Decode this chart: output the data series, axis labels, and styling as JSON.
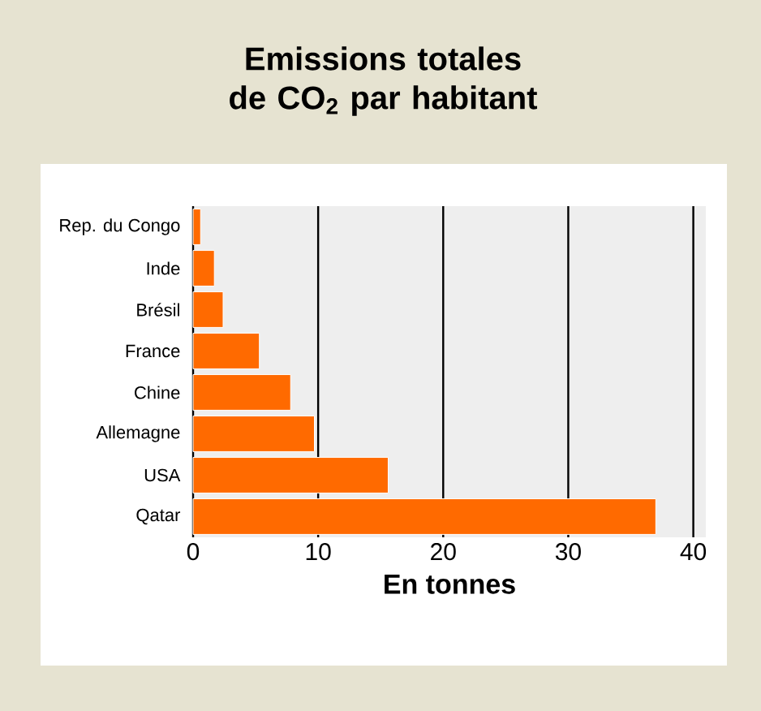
{
  "chart_data": {
    "type": "bar",
    "orientation": "horizontal",
    "title": "Emissions totales de CO$_{2}$ par habitant",
    "xlabel": "En tonnes",
    "categories": [
      "Rep. du Congo",
      "Inde",
      "Brésil",
      "France",
      "Chine",
      "Allemagne",
      "USA",
      "Qatar"
    ],
    "values": [
      0.6,
      1.7,
      2.4,
      5.3,
      7.8,
      9.7,
      15.6,
      37.0
    ],
    "color": "#ff6a00",
    "xlim": [
      0,
      41
    ],
    "xticks": [
      0,
      10,
      20,
      30,
      40
    ],
    "grid": "x"
  }
}
